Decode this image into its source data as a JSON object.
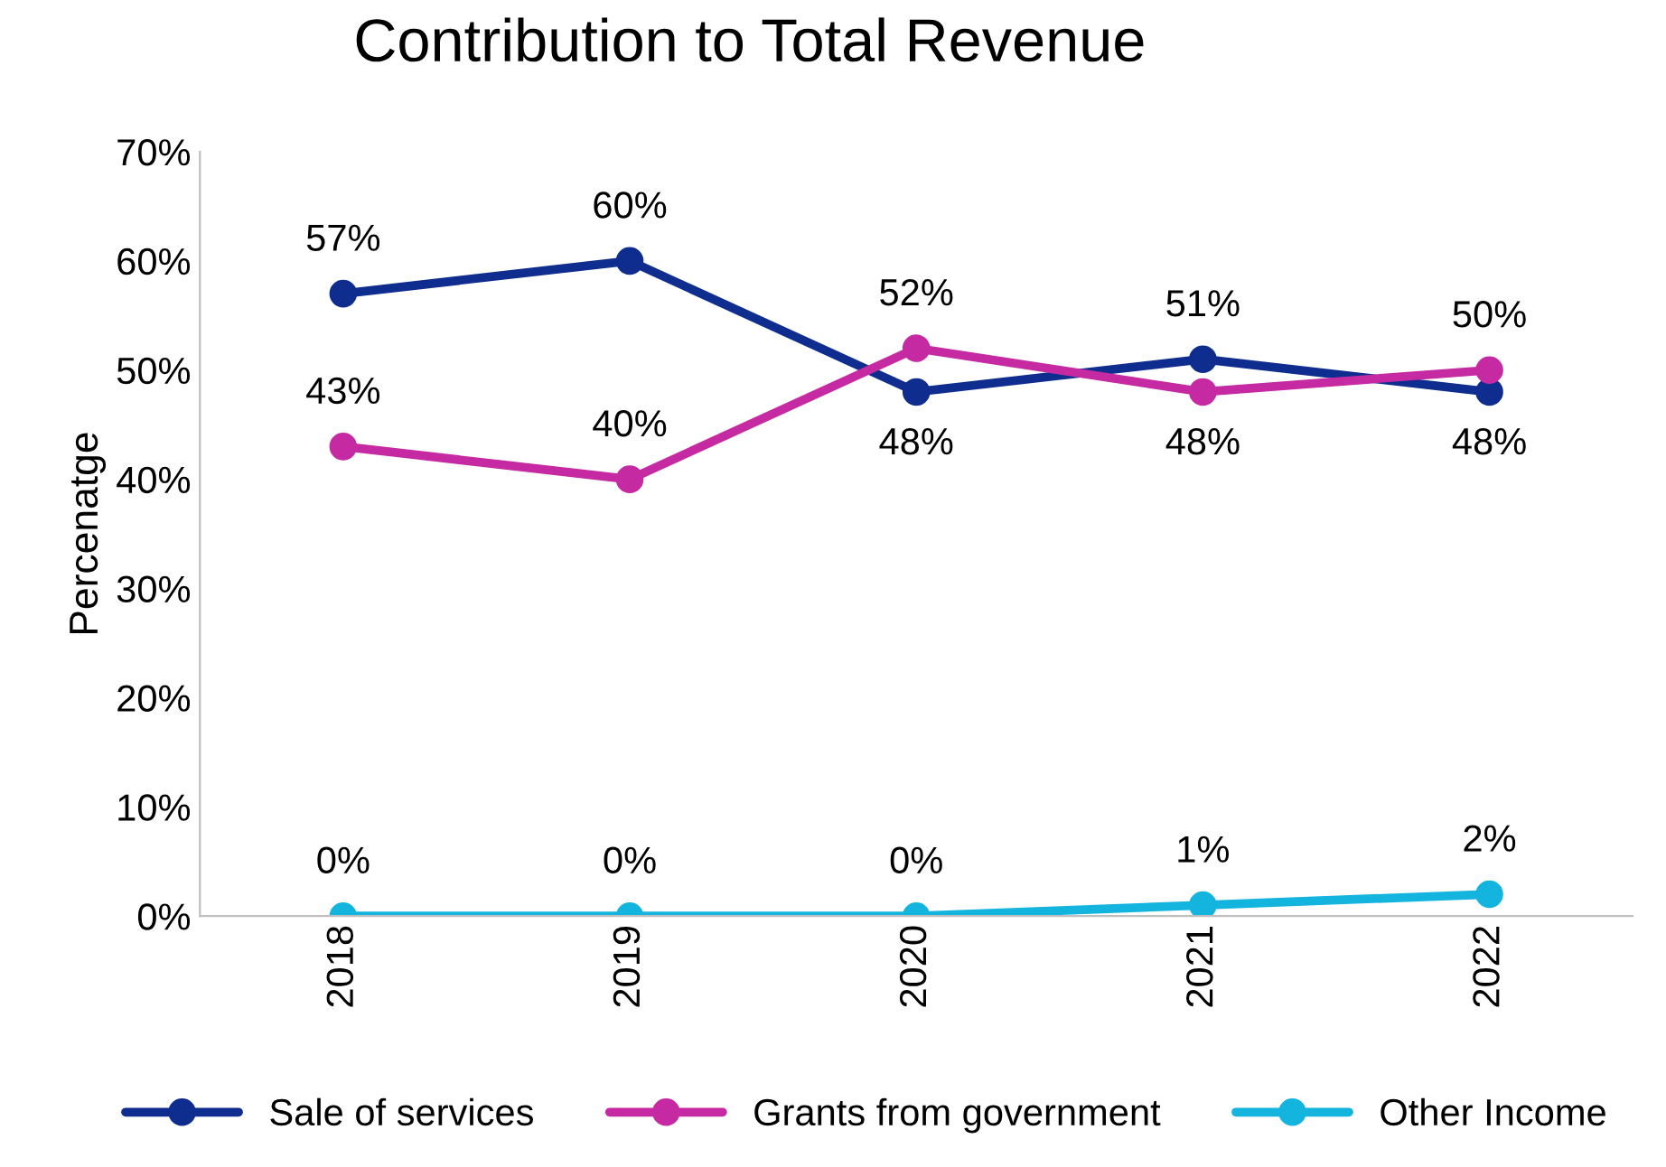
{
  "chart_data": {
    "type": "line",
    "title": "Contribution to Total Revenue",
    "ylabel": "Percenatge",
    "categories": [
      "2018",
      "2019",
      "2020",
      "2021",
      "2022"
    ],
    "series": [
      {
        "name": "Sale of services",
        "color": "#0e2d8e",
        "values": [
          57,
          60,
          48,
          51,
          48
        ],
        "value_labels": [
          "57%",
          "60%",
          "48%",
          "51%",
          "48%"
        ]
      },
      {
        "name": "Grants from government",
        "color": "#c62aa3",
        "values": [
          43,
          40,
          52,
          48,
          50
        ],
        "value_labels": [
          "43%",
          "40%",
          "52%",
          "48%",
          "50%"
        ]
      },
      {
        "name": "Other Income",
        "color": "#13b4de",
        "values": [
          0,
          0,
          0,
          1,
          2
        ],
        "value_labels": [
          "0%",
          "0%",
          "0%",
          "1%",
          "2%"
        ]
      }
    ],
    "ylim": [
      0,
      70
    ],
    "yticks": [
      {
        "value": 0,
        "label": "0%"
      },
      {
        "value": 10,
        "label": "10%"
      },
      {
        "value": 20,
        "label": "20%"
      },
      {
        "value": 30,
        "label": "30%"
      },
      {
        "value": 40,
        "label": "40%"
      },
      {
        "value": 50,
        "label": "50%"
      },
      {
        "value": 60,
        "label": "60%"
      },
      {
        "value": 70,
        "label": "70%"
      }
    ],
    "grid": false,
    "legend": "bottom",
    "marker": "circle",
    "line_style": "solid"
  }
}
